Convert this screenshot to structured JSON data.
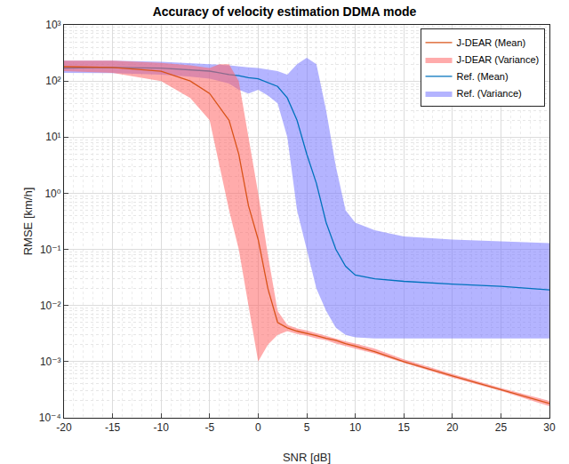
{
  "chart_data": {
    "type": "line",
    "title": "Accuracy of velocity estimation DDMA mode",
    "x_label": "SNR [dB]",
    "y_label": "RMSE [km/h]",
    "log": "y",
    "grid": true,
    "legend": "top right",
    "x": [
      -20,
      -15,
      -10,
      -7,
      -5,
      -4,
      -3,
      -2,
      -1,
      0,
      1,
      2,
      3,
      4,
      5,
      6,
      7,
      8,
      9,
      10,
      12,
      15,
      20,
      25,
      30
    ],
    "xlim": [
      -20,
      30
    ],
    "xticks": [
      -20,
      -15,
      -10,
      -5,
      0,
      5,
      10,
      15,
      20,
      25,
      30
    ],
    "ylim": [
      0.0001,
      1000
    ],
    "yticks": [
      {
        "value": 0.0001,
        "label": "10⁻⁴"
      },
      {
        "value": 0.001,
        "label": "10⁻³"
      },
      {
        "value": 0.01,
        "label": "10⁻²"
      },
      {
        "value": 0.1,
        "label": "10⁻¹"
      },
      {
        "value": 1,
        "label": "10⁰"
      },
      {
        "value": 10,
        "label": "10¹"
      },
      {
        "value": 100,
        "label": "10²"
      },
      {
        "value": 1000,
        "label": "10³"
      }
    ],
    "series": [
      {
        "name": "Ref. (Variance)",
        "type": "band",
        "color": "#7777ff",
        "lower": [
          140,
          138,
          130,
          120,
          110,
          100,
          90,
          70,
          60,
          70,
          55,
          40,
          10,
          0.5,
          0.1,
          0.02,
          0.008,
          0.004,
          0.003,
          0.0027,
          0.0026,
          0.0026,
          0.0026,
          0.0026,
          0.0026
        ],
        "upper": [
          230,
          230,
          220,
          210,
          200,
          195,
          190,
          180,
          175,
          170,
          160,
          150,
          130,
          200,
          260,
          200,
          30,
          3,
          0.5,
          0.3,
          0.22,
          0.17,
          0.15,
          0.14,
          0.13
        ]
      },
      {
        "name": "Ref. (Mean)",
        "type": "line",
        "color": "#0072bd",
        "values": [
          170,
          175,
          170,
          160,
          150,
          140,
          130,
          125,
          115,
          110,
          95,
          80,
          50,
          20,
          5,
          1.5,
          0.3,
          0.1,
          0.05,
          0.035,
          0.03,
          0.027,
          0.024,
          0.022,
          0.019
        ]
      },
      {
        "name": "J-DEAR (Variance)",
        "type": "band",
        "color": "#ff6666",
        "lower": [
          150,
          140,
          100,
          50,
          20,
          3,
          0.5,
          0.1,
          0.01,
          0.001,
          0.002,
          0.003,
          0.0035,
          0.0031,
          0.0029,
          0.0026,
          0.0024,
          0.0021,
          0.0019,
          0.0017,
          0.0014,
          0.00095,
          0.00052,
          0.0003,
          0.00016
        ],
        "upper": [
          230,
          230,
          210,
          190,
          170,
          200,
          200,
          100,
          10,
          1,
          0.08,
          0.008,
          0.0045,
          0.0039,
          0.0036,
          0.0032,
          0.0029,
          0.0026,
          0.0023,
          0.0021,
          0.0017,
          0.0011,
          0.0006,
          0.00034,
          0.0002
        ]
      },
      {
        "name": "J-DEAR (Mean)",
        "type": "line",
        "color": "#d95319",
        "values": [
          180,
          175,
          150,
          100,
          60,
          35,
          20,
          5,
          0.6,
          0.15,
          0.02,
          0.005,
          0.004,
          0.0035,
          0.0032,
          0.0029,
          0.0026,
          0.0024,
          0.0021,
          0.0019,
          0.0015,
          0.001,
          0.00056,
          0.00032,
          0.00018
        ]
      }
    ]
  }
}
